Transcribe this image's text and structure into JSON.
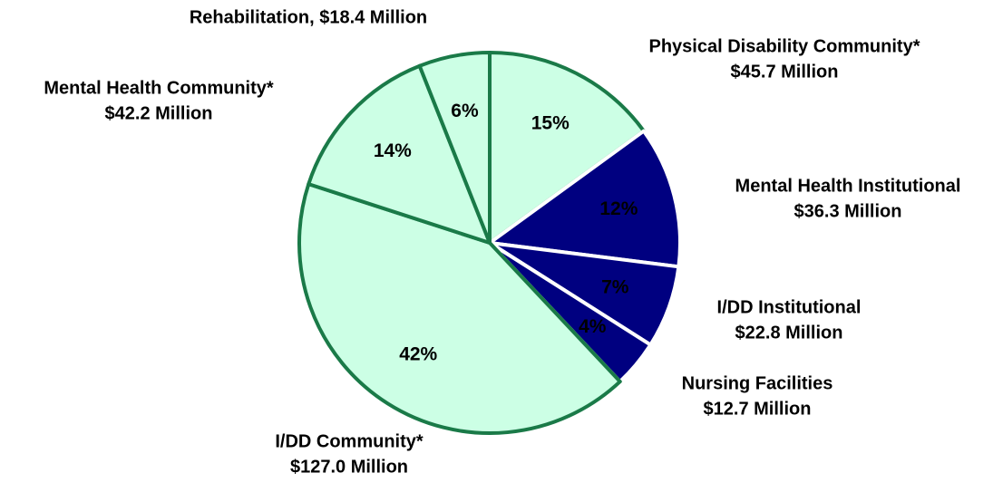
{
  "chart_data": {
    "type": "pie",
    "categories": [
      [
        "Physical Disability Community*",
        "$45.7 Million"
      ],
      [
        "Mental Health Institutional",
        "$36.3 Million"
      ],
      [
        "I/DD Institutional",
        "$22.8 Million"
      ],
      [
        "Nursing Facilities",
        "$12.7 Million"
      ],
      [
        "I/DD Community*",
        "$127.0 Million"
      ],
      [
        "Mental Health Community*",
        "$42.2 Million"
      ],
      [
        "Rehabilitation, $18.4 Million"
      ]
    ],
    "values": [
      15,
      12,
      7,
      4,
      42,
      14,
      6
    ],
    "value_labels": [
      "15%",
      "12%",
      "7%",
      "4%",
      "42%",
      "14%",
      "6%"
    ],
    "colors": [
      "#ccffe5",
      "#000080",
      "#000080",
      "#000080",
      "#ccffe5",
      "#ccffe5",
      "#ccffe5"
    ],
    "start_angle": 0
  }
}
